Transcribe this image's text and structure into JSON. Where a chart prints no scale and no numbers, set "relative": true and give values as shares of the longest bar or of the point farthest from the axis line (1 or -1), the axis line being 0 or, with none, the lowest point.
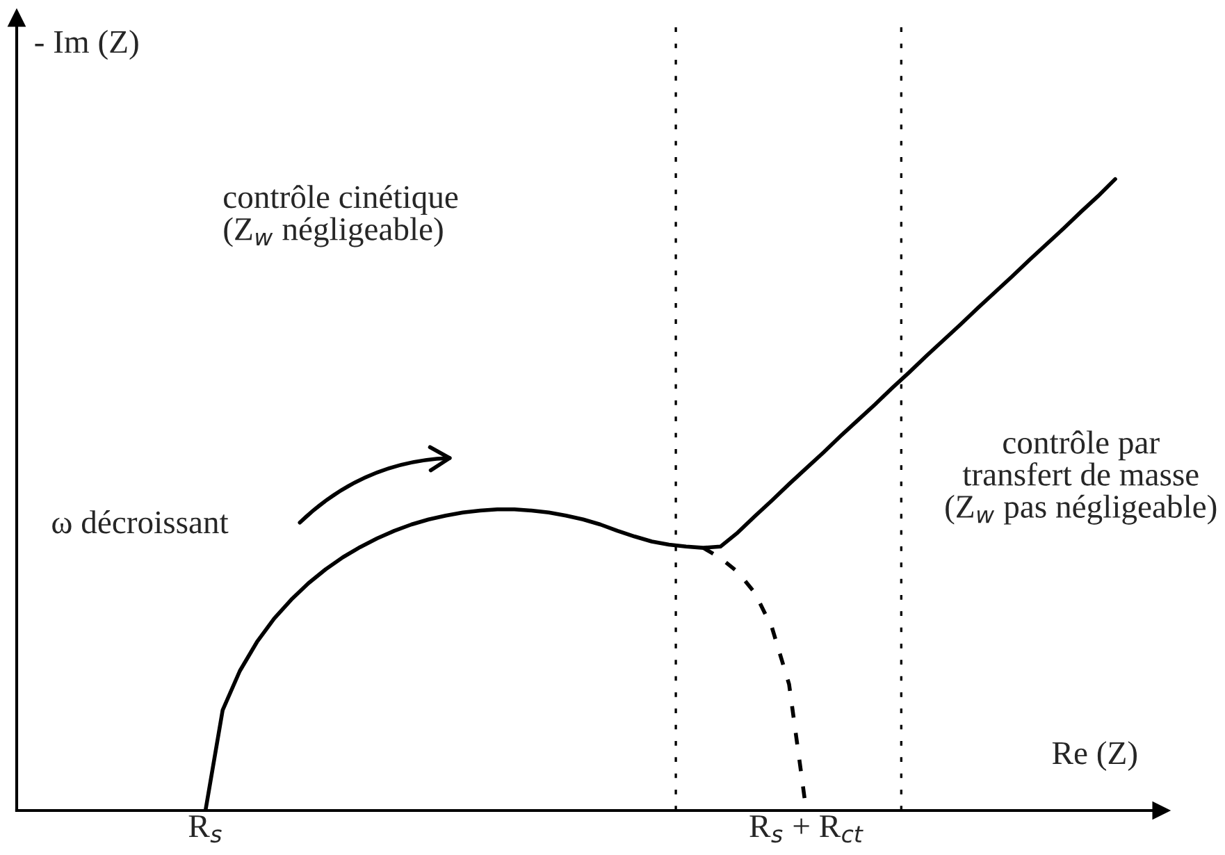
{
  "chart_data": {
    "type": "line",
    "relative": true,
    "xlabel": "Re (Z)",
    "ylabel": "- Im (Z)",
    "categories": [
      null,
      null,
      null,
      null,
      null,
      null,
      null,
      null,
      null,
      null,
      null,
      "R$_{s}$",
      null,
      null,
      null,
      null,
      null,
      null,
      null,
      null,
      null,
      null,
      null,
      null,
      null,
      null,
      null,
      null,
      null,
      null,
      null,
      null,
      null,
      null,
      null,
      null,
      null,
      null,
      null,
      null,
      null,
      null,
      null,
      null,
      null,
      null,
      "R$_{s}$ + R$_{ct}$",
      null,
      null,
      null,
      null,
      null,
      null,
      null,
      null,
      null,
      null,
      null,
      null,
      null,
      null,
      null,
      null,
      null,
      null,
      null,
      null
    ],
    "series": [
      {
        "color": "#000000",
        "line_style": "solid",
        "values": [
          null,
          null,
          null,
          null,
          null,
          null,
          null,
          null,
          null,
          null,
          null,
          0,
          0.159,
          0.221,
          0.267,
          0.304,
          0.334,
          0.36,
          0.382,
          0.401,
          0.417,
          0.431,
          0.443,
          0.453,
          0.461,
          0.467,
          0.472,
          0.475,
          0.477,
          0.477,
          0.475,
          0.472,
          0.467,
          0.461,
          0.453,
          0.443,
          0.434,
          0.426,
          0.421,
          0.418,
          0.416,
          0.418,
          0.44,
          0.466,
          0.491,
          0.517,
          0.542,
          0.567,
          0.593,
          0.618,
          0.643,
          0.669,
          0.694,
          0.72,
          0.745,
          0.77,
          0.796,
          0.821,
          0.846,
          0.872,
          0.897,
          0.922,
          0.948,
          0.973,
          1.0,
          null,
          null
        ]
      },
      {
        "color": "#000000",
        "line_style": "dashed",
        "values": [
          null,
          null,
          null,
          null,
          null,
          null,
          null,
          null,
          null,
          null,
          null,
          null,
          null,
          null,
          null,
          null,
          null,
          null,
          null,
          null,
          null,
          null,
          null,
          null,
          null,
          null,
          null,
          null,
          null,
          null,
          null,
          null,
          null,
          null,
          null,
          null,
          null,
          null,
          null,
          null,
          0.416,
          0.4,
          0.378,
          0.345,
          0.29,
          0.2,
          0,
          null,
          null,
          null,
          null,
          null,
          null,
          null,
          null,
          null,
          null,
          null,
          null,
          null,
          null,
          null,
          null,
          null,
          null,
          null,
          null
        ]
      }
    ],
    "annotations": [
      "contrôle cinétique\n(Z$_{w}$ négligeable)",
      "ω décroissant",
      "contrôle par\ntransfert de masse\n(Z$_{w}$ pas négligeable)"
    ],
    "grid": false,
    "legend": false
  }
}
